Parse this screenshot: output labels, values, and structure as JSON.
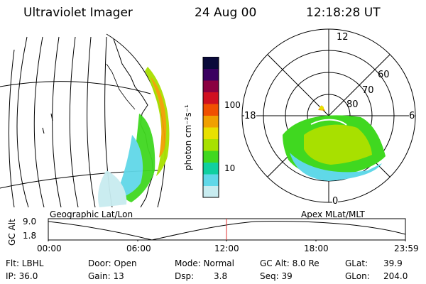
{
  "header": {
    "instrument": "Ultraviolet Imager",
    "date": "24 Aug 00",
    "time": "12:18:28 UT"
  },
  "colorbar": {
    "unit_label": "photon cm⁻²s⁻¹",
    "ticks": [
      "100",
      "10"
    ],
    "colors": [
      "#0a0a3a",
      "#3a0060",
      "#8a0040",
      "#d01020",
      "#f05000",
      "#f0a000",
      "#e8e000",
      "#a8e000",
      "#40d820",
      "#10d0a0",
      "#60d8e8",
      "#c8ecf0"
    ]
  },
  "polar_plot": {
    "mlt_labels": {
      "top": "12",
      "bottom": "0",
      "left": "18",
      "right": "6"
    },
    "lat_labels": [
      "60",
      "70",
      "80"
    ]
  },
  "timeline": {
    "y_axis_label": "GC Alt",
    "y_ticks": [
      "9.0",
      "1.8"
    ],
    "left_caption": "Geographic Lat/Lon",
    "right_caption": "Apex MLat/MLT",
    "x_ticks": [
      "00:00",
      "06:00",
      "12:00",
      "18:00",
      "23:59"
    ],
    "marker_color": "#e03030"
  },
  "info": {
    "flt": "Flt: LBHL",
    "ip": "IP: 36.0",
    "door": "Door: Open",
    "gain": "Gain: 13",
    "mode": "Mode: Normal",
    "dsp_label": "Dsp:",
    "dsp_value": "3.8",
    "gc_alt": "GC Alt: 8.0 Re",
    "seq": "Seq: 39",
    "glat_label": "GLat:",
    "glat_value": "39.9",
    "glon_label": "GLon:",
    "glon_value": "204.0"
  }
}
